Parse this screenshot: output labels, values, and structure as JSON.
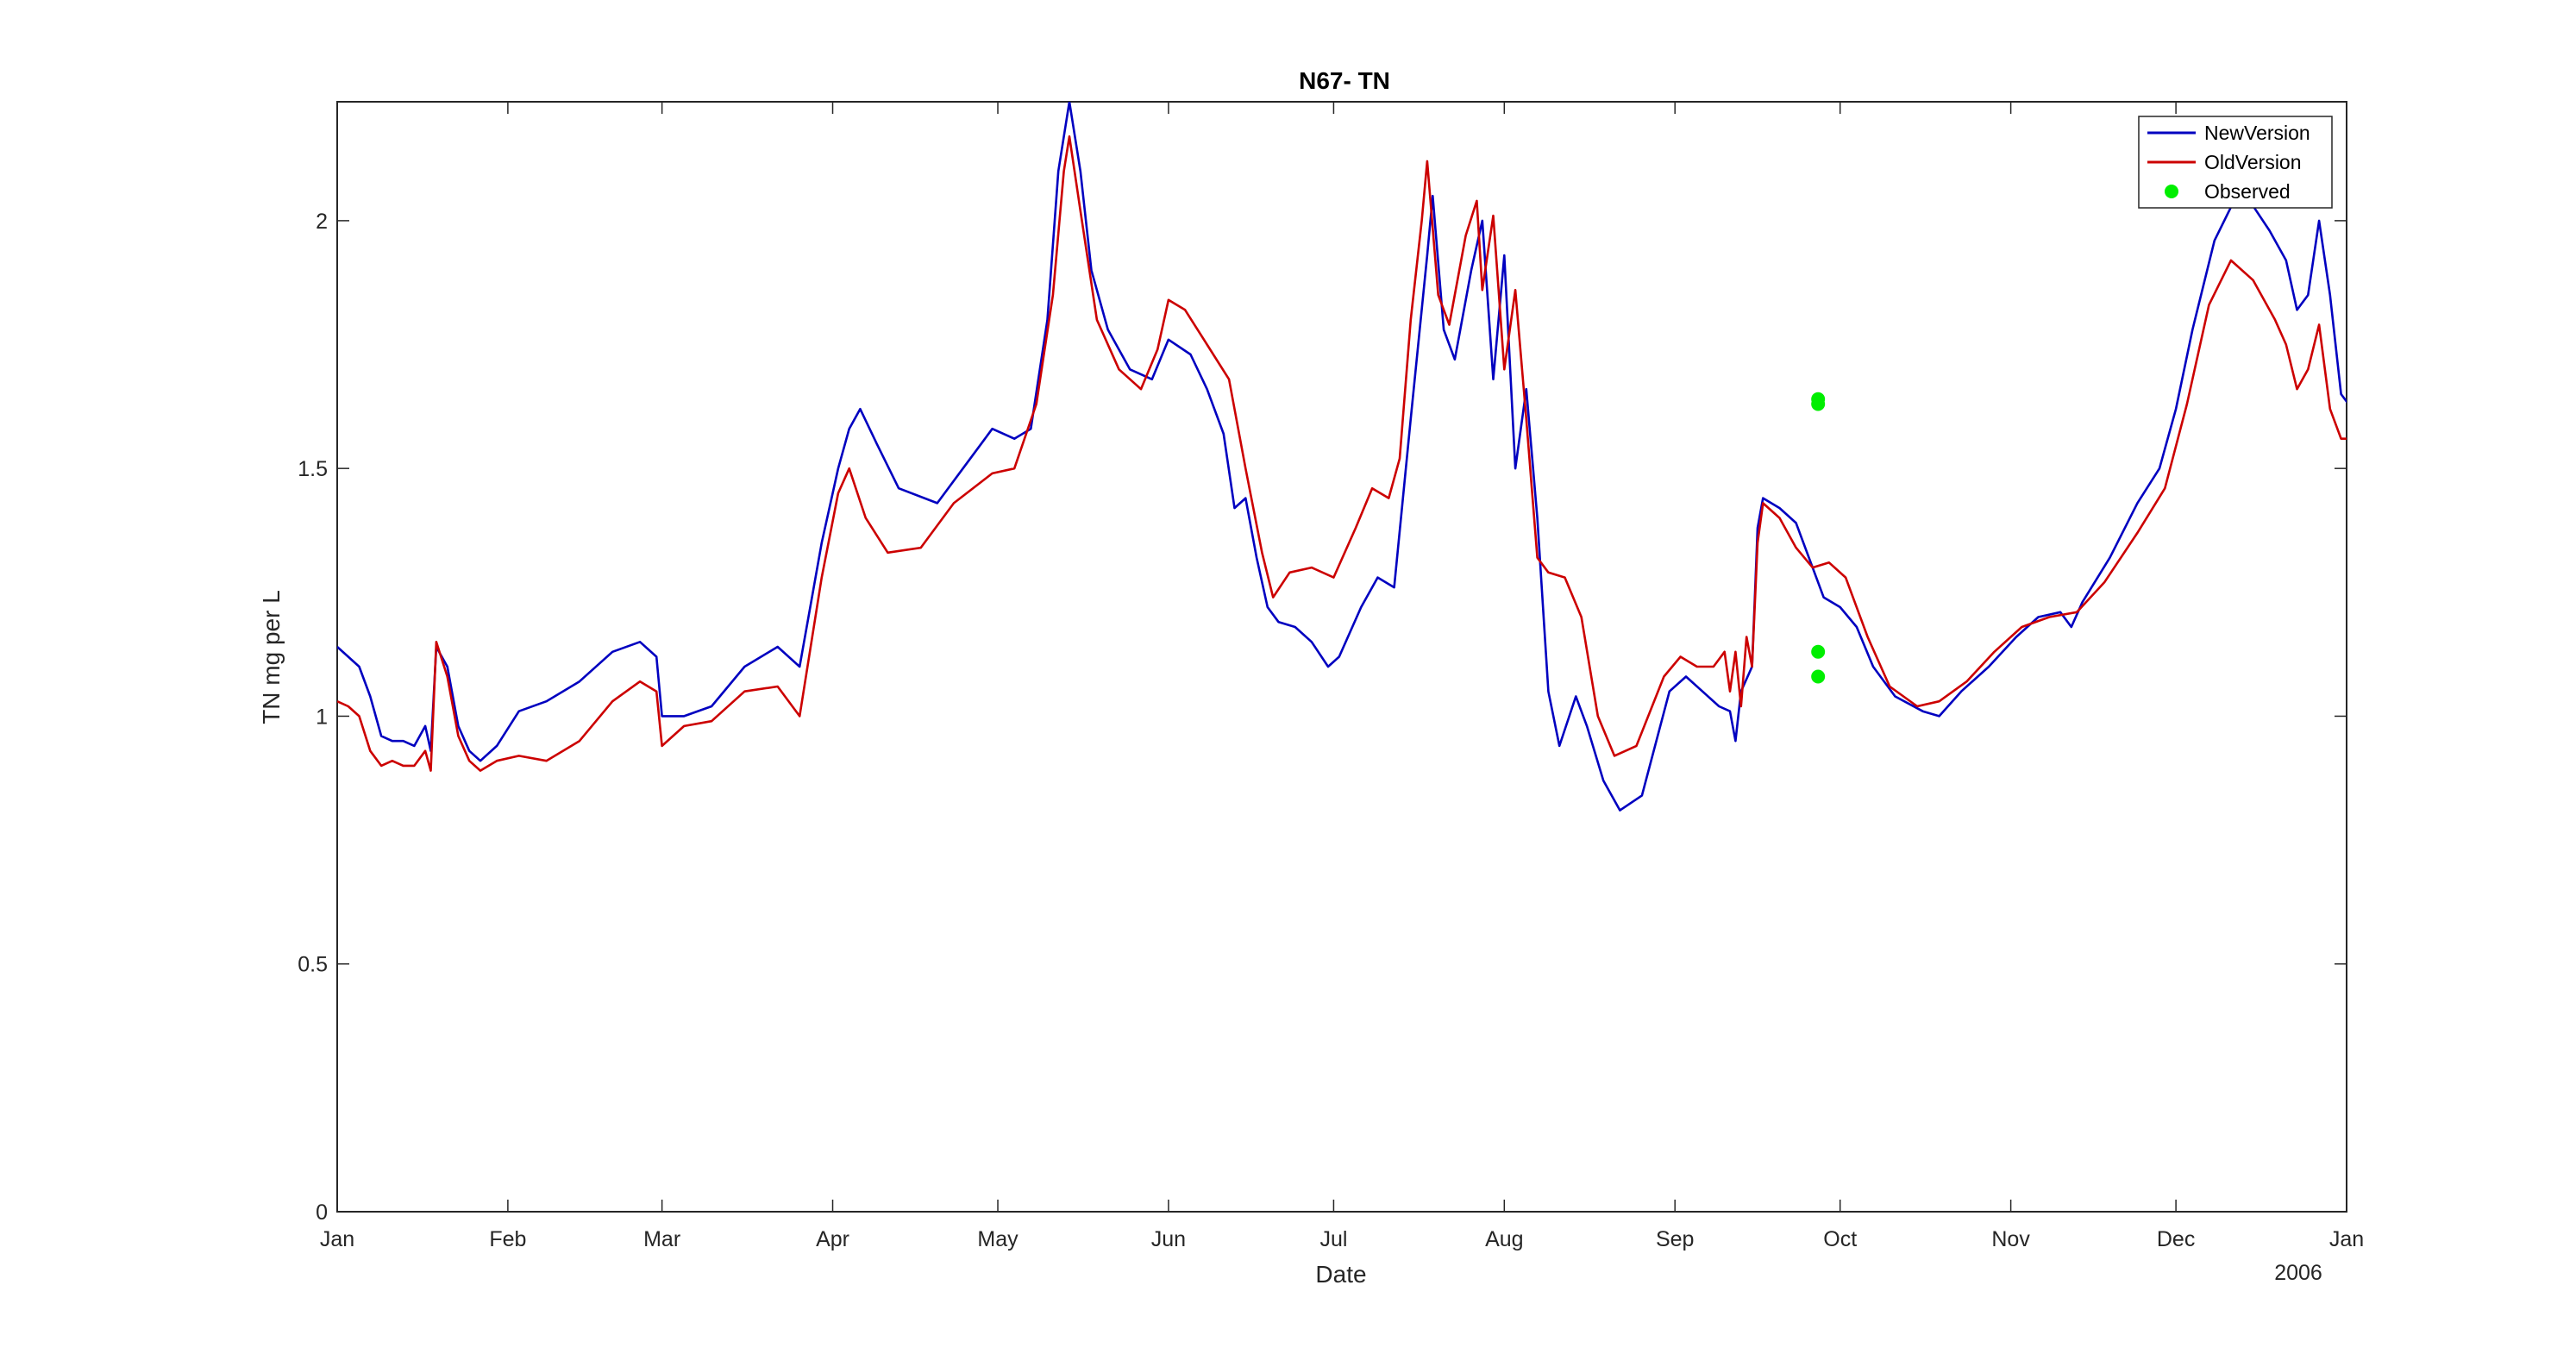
{
  "chart_data": {
    "type": "line",
    "title": "N67- TN",
    "xlabel": "Date",
    "ylabel": "TN mg per L",
    "year_label": "2006",
    "xlim": [
      "2005-01-01",
      "2006-01-01"
    ],
    "ylim": [
      0,
      2.24
    ],
    "x_ticks": [
      {
        "date": "2005-01-01",
        "label": "Jan"
      },
      {
        "date": "2005-02-01",
        "label": "Feb"
      },
      {
        "date": "2005-03-01",
        "label": "Mar"
      },
      {
        "date": "2005-04-01",
        "label": "Apr"
      },
      {
        "date": "2005-05-01",
        "label": "May"
      },
      {
        "date": "2005-06-01",
        "label": "Jun"
      },
      {
        "date": "2005-07-01",
        "label": "Jul"
      },
      {
        "date": "2005-08-01",
        "label": "Aug"
      },
      {
        "date": "2005-09-01",
        "label": "Sep"
      },
      {
        "date": "2005-10-01",
        "label": "Oct"
      },
      {
        "date": "2005-11-01",
        "label": "Nov"
      },
      {
        "date": "2005-12-01",
        "label": "Dec"
      },
      {
        "date": "2006-01-01",
        "label": "Jan"
      }
    ],
    "y_ticks": [
      {
        "value": 0,
        "label": "0"
      },
      {
        "value": 0.5,
        "label": "0.5"
      },
      {
        "value": 1,
        "label": "1"
      },
      {
        "value": 1.5,
        "label": "1.5"
      },
      {
        "value": 2,
        "label": "2"
      }
    ],
    "grid": false,
    "legend_position": "top-right",
    "series": [
      {
        "name": "NewVersion",
        "color": "#0000c0",
        "marker": "line",
        "points": [
          [
            "2005-01-01",
            1.14
          ],
          [
            "2005-01-03",
            1.12
          ],
          [
            "2005-01-05",
            1.1
          ],
          [
            "2005-01-07",
            1.04
          ],
          [
            "2005-01-09",
            0.96
          ],
          [
            "2005-01-11",
            0.95
          ],
          [
            "2005-01-13",
            0.95
          ],
          [
            "2005-01-15",
            0.94
          ],
          [
            "2005-01-17",
            0.98
          ],
          [
            "2005-01-18",
            0.93
          ],
          [
            "2005-01-19",
            1.14
          ],
          [
            "2005-01-21",
            1.1
          ],
          [
            "2005-01-23",
            0.98
          ],
          [
            "2005-01-25",
            0.93
          ],
          [
            "2005-01-27",
            0.91
          ],
          [
            "2005-01-30",
            0.94
          ],
          [
            "2005-02-03",
            1.01
          ],
          [
            "2005-02-08",
            1.03
          ],
          [
            "2005-02-14",
            1.07
          ],
          [
            "2005-02-20",
            1.13
          ],
          [
            "2005-02-25",
            1.15
          ],
          [
            "2005-02-28",
            1.12
          ],
          [
            "2005-03-01",
            1.0
          ],
          [
            "2005-03-05",
            1.0
          ],
          [
            "2005-03-10",
            1.02
          ],
          [
            "2005-03-16",
            1.1
          ],
          [
            "2005-03-22",
            1.14
          ],
          [
            "2005-03-26",
            1.1
          ],
          [
            "2005-03-30",
            1.35
          ],
          [
            "2005-04-02",
            1.5
          ],
          [
            "2005-04-04",
            1.58
          ],
          [
            "2005-04-06",
            1.62
          ],
          [
            "2005-04-09",
            1.55
          ],
          [
            "2005-04-13",
            1.46
          ],
          [
            "2005-04-20",
            1.43
          ],
          [
            "2005-04-26",
            1.52
          ],
          [
            "2005-04-30",
            1.58
          ],
          [
            "2005-05-04",
            1.56
          ],
          [
            "2005-05-07",
            1.58
          ],
          [
            "2005-05-10",
            1.8
          ],
          [
            "2005-05-12",
            2.1
          ],
          [
            "2005-05-14",
            2.24
          ],
          [
            "2005-05-16",
            2.1
          ],
          [
            "2005-05-18",
            1.9
          ],
          [
            "2005-05-21",
            1.78
          ],
          [
            "2005-05-25",
            1.7
          ],
          [
            "2005-05-29",
            1.68
          ],
          [
            "2005-06-01",
            1.76
          ],
          [
            "2005-06-05",
            1.73
          ],
          [
            "2005-06-08",
            1.66
          ],
          [
            "2005-06-11",
            1.57
          ],
          [
            "2005-06-13",
            1.42
          ],
          [
            "2005-06-15",
            1.44
          ],
          [
            "2005-06-17",
            1.32
          ],
          [
            "2005-06-19",
            1.22
          ],
          [
            "2005-06-21",
            1.19
          ],
          [
            "2005-06-24",
            1.18
          ],
          [
            "2005-06-27",
            1.15
          ],
          [
            "2005-06-30",
            1.1
          ],
          [
            "2005-07-02",
            1.12
          ],
          [
            "2005-07-06",
            1.22
          ],
          [
            "2005-07-09",
            1.28
          ],
          [
            "2005-07-12",
            1.26
          ],
          [
            "2005-07-15",
            1.6
          ],
          [
            "2005-07-18",
            1.93
          ],
          [
            "2005-07-19",
            2.05
          ],
          [
            "2005-07-21",
            1.78
          ],
          [
            "2005-07-23",
            1.72
          ],
          [
            "2005-07-26",
            1.9
          ],
          [
            "2005-07-28",
            2.0
          ],
          [
            "2005-07-30",
            1.68
          ],
          [
            "2005-08-01",
            1.93
          ],
          [
            "2005-08-03",
            1.5
          ],
          [
            "2005-08-05",
            1.66
          ],
          [
            "2005-08-07",
            1.4
          ],
          [
            "2005-08-09",
            1.05
          ],
          [
            "2005-08-11",
            0.94
          ],
          [
            "2005-08-14",
            1.04
          ],
          [
            "2005-08-16",
            0.98
          ],
          [
            "2005-08-19",
            0.87
          ],
          [
            "2005-08-22",
            0.81
          ],
          [
            "2005-08-26",
            0.84
          ],
          [
            "2005-08-31",
            1.05
          ],
          [
            "2005-09-03",
            1.08
          ],
          [
            "2005-09-06",
            1.05
          ],
          [
            "2005-09-09",
            1.02
          ],
          [
            "2005-09-11",
            1.01
          ],
          [
            "2005-09-12",
            0.95
          ],
          [
            "2005-09-13",
            1.05
          ],
          [
            "2005-09-15",
            1.1
          ],
          [
            "2005-09-16",
            1.38
          ],
          [
            "2005-09-17",
            1.44
          ],
          [
            "2005-09-20",
            1.42
          ],
          [
            "2005-09-23",
            1.39
          ],
          [
            "2005-09-26",
            1.3
          ],
          [
            "2005-09-28",
            1.24
          ],
          [
            "2005-10-01",
            1.22
          ],
          [
            "2005-10-04",
            1.18
          ],
          [
            "2005-10-07",
            1.1
          ],
          [
            "2005-10-11",
            1.04
          ],
          [
            "2005-10-16",
            1.01
          ],
          [
            "2005-10-19",
            1.0
          ],
          [
            "2005-10-23",
            1.05
          ],
          [
            "2005-10-28",
            1.1
          ],
          [
            "2005-11-02",
            1.16
          ],
          [
            "2005-11-06",
            1.2
          ],
          [
            "2005-11-10",
            1.21
          ],
          [
            "2005-11-12",
            1.18
          ],
          [
            "2005-11-14",
            1.23
          ],
          [
            "2005-11-19",
            1.32
          ],
          [
            "2005-11-24",
            1.43
          ],
          [
            "2005-11-28",
            1.5
          ],
          [
            "2005-12-01",
            1.62
          ],
          [
            "2005-12-04",
            1.78
          ],
          [
            "2005-12-08",
            1.96
          ],
          [
            "2005-12-12",
            2.05
          ],
          [
            "2005-12-15",
            2.03
          ],
          [
            "2005-12-18",
            1.98
          ],
          [
            "2005-12-21",
            1.92
          ],
          [
            "2005-12-23",
            1.82
          ],
          [
            "2005-12-25",
            1.85
          ],
          [
            "2005-12-27",
            2.0
          ],
          [
            "2005-12-29",
            1.85
          ],
          [
            "2005-12-31",
            1.65
          ],
          [
            "2006-01-02",
            1.62
          ],
          [
            "2006-01-04",
            1.57
          ]
        ]
      },
      {
        "name": "OldVersion",
        "color": "#cc0000",
        "marker": "line",
        "points": [
          [
            "2005-01-01",
            1.03
          ],
          [
            "2005-01-03",
            1.02
          ],
          [
            "2005-01-05",
            1.0
          ],
          [
            "2005-01-07",
            0.93
          ],
          [
            "2005-01-09",
            0.9
          ],
          [
            "2005-01-11",
            0.91
          ],
          [
            "2005-01-13",
            0.9
          ],
          [
            "2005-01-15",
            0.9
          ],
          [
            "2005-01-17",
            0.93
          ],
          [
            "2005-01-18",
            0.89
          ],
          [
            "2005-01-19",
            1.15
          ],
          [
            "2005-01-21",
            1.08
          ],
          [
            "2005-01-23",
            0.96
          ],
          [
            "2005-01-25",
            0.91
          ],
          [
            "2005-01-27",
            0.89
          ],
          [
            "2005-01-30",
            0.91
          ],
          [
            "2005-02-03",
            0.92
          ],
          [
            "2005-02-08",
            0.91
          ],
          [
            "2005-02-14",
            0.95
          ],
          [
            "2005-02-20",
            1.03
          ],
          [
            "2005-02-25",
            1.07
          ],
          [
            "2005-02-28",
            1.05
          ],
          [
            "2005-03-01",
            0.94
          ],
          [
            "2005-03-05",
            0.98
          ],
          [
            "2005-03-10",
            0.99
          ],
          [
            "2005-03-16",
            1.05
          ],
          [
            "2005-03-22",
            1.06
          ],
          [
            "2005-03-26",
            1.0
          ],
          [
            "2005-03-30",
            1.28
          ],
          [
            "2005-04-02",
            1.45
          ],
          [
            "2005-04-04",
            1.5
          ],
          [
            "2005-04-07",
            1.4
          ],
          [
            "2005-04-11",
            1.33
          ],
          [
            "2005-04-17",
            1.34
          ],
          [
            "2005-04-23",
            1.43
          ],
          [
            "2005-04-30",
            1.49
          ],
          [
            "2005-05-04",
            1.5
          ],
          [
            "2005-05-08",
            1.63
          ],
          [
            "2005-05-11",
            1.85
          ],
          [
            "2005-05-13",
            2.1
          ],
          [
            "2005-05-14",
            2.17
          ],
          [
            "2005-05-16",
            2.02
          ],
          [
            "2005-05-19",
            1.8
          ],
          [
            "2005-05-23",
            1.7
          ],
          [
            "2005-05-27",
            1.66
          ],
          [
            "2005-05-30",
            1.74
          ],
          [
            "2005-06-01",
            1.84
          ],
          [
            "2005-06-04",
            1.82
          ],
          [
            "2005-06-08",
            1.75
          ],
          [
            "2005-06-12",
            1.68
          ],
          [
            "2005-06-15",
            1.5
          ],
          [
            "2005-06-18",
            1.33
          ],
          [
            "2005-06-20",
            1.24
          ],
          [
            "2005-06-23",
            1.29
          ],
          [
            "2005-06-27",
            1.3
          ],
          [
            "2005-07-01",
            1.28
          ],
          [
            "2005-07-05",
            1.38
          ],
          [
            "2005-07-08",
            1.46
          ],
          [
            "2005-07-11",
            1.44
          ],
          [
            "2005-07-13",
            1.52
          ],
          [
            "2005-07-15",
            1.8
          ],
          [
            "2005-07-17",
            2.0
          ],
          [
            "2005-07-18",
            2.12
          ],
          [
            "2005-07-20",
            1.85
          ],
          [
            "2005-07-22",
            1.79
          ],
          [
            "2005-07-25",
            1.97
          ],
          [
            "2005-07-27",
            2.04
          ],
          [
            "2005-07-28",
            1.86
          ],
          [
            "2005-07-30",
            2.01
          ],
          [
            "2005-08-01",
            1.7
          ],
          [
            "2005-08-03",
            1.86
          ],
          [
            "2005-08-05",
            1.6
          ],
          [
            "2005-08-07",
            1.32
          ],
          [
            "2005-08-09",
            1.29
          ],
          [
            "2005-08-12",
            1.28
          ],
          [
            "2005-08-15",
            1.2
          ],
          [
            "2005-08-18",
            1.0
          ],
          [
            "2005-08-21",
            0.92
          ],
          [
            "2005-08-25",
            0.94
          ],
          [
            "2005-08-30",
            1.08
          ],
          [
            "2005-09-02",
            1.12
          ],
          [
            "2005-09-05",
            1.1
          ],
          [
            "2005-09-08",
            1.1
          ],
          [
            "2005-09-10",
            1.13
          ],
          [
            "2005-09-11",
            1.05
          ],
          [
            "2005-09-12",
            1.13
          ],
          [
            "2005-09-13",
            1.02
          ],
          [
            "2005-09-14",
            1.16
          ],
          [
            "2005-09-15",
            1.1
          ],
          [
            "2005-09-16",
            1.35
          ],
          [
            "2005-09-17",
            1.43
          ],
          [
            "2005-09-20",
            1.4
          ],
          [
            "2005-09-23",
            1.34
          ],
          [
            "2005-09-26",
            1.3
          ],
          [
            "2005-09-29",
            1.31
          ],
          [
            "2005-10-02",
            1.28
          ],
          [
            "2005-10-06",
            1.16
          ],
          [
            "2005-10-10",
            1.06
          ],
          [
            "2005-10-15",
            1.02
          ],
          [
            "2005-10-19",
            1.03
          ],
          [
            "2005-10-24",
            1.07
          ],
          [
            "2005-10-29",
            1.13
          ],
          [
            "2005-11-03",
            1.18
          ],
          [
            "2005-11-08",
            1.2
          ],
          [
            "2005-11-13",
            1.21
          ],
          [
            "2005-11-18",
            1.27
          ],
          [
            "2005-11-24",
            1.37
          ],
          [
            "2005-11-29",
            1.46
          ],
          [
            "2005-12-03",
            1.63
          ],
          [
            "2005-12-07",
            1.83
          ],
          [
            "2005-12-11",
            1.92
          ],
          [
            "2005-12-15",
            1.88
          ],
          [
            "2005-12-19",
            1.8
          ],
          [
            "2005-12-21",
            1.75
          ],
          [
            "2005-12-23",
            1.66
          ],
          [
            "2005-12-25",
            1.7
          ],
          [
            "2005-12-27",
            1.79
          ],
          [
            "2005-12-29",
            1.62
          ],
          [
            "2005-12-31",
            1.56
          ],
          [
            "2006-01-02",
            1.56
          ],
          [
            "2006-01-04",
            1.51
          ]
        ]
      },
      {
        "name": "Observed",
        "color": "#00ee00",
        "marker": "dot",
        "points": [
          [
            "2005-09-27",
            1.64
          ],
          [
            "2005-09-27",
            1.63
          ],
          [
            "2005-09-27",
            1.13
          ],
          [
            "2005-09-27",
            1.08
          ]
        ]
      }
    ]
  }
}
